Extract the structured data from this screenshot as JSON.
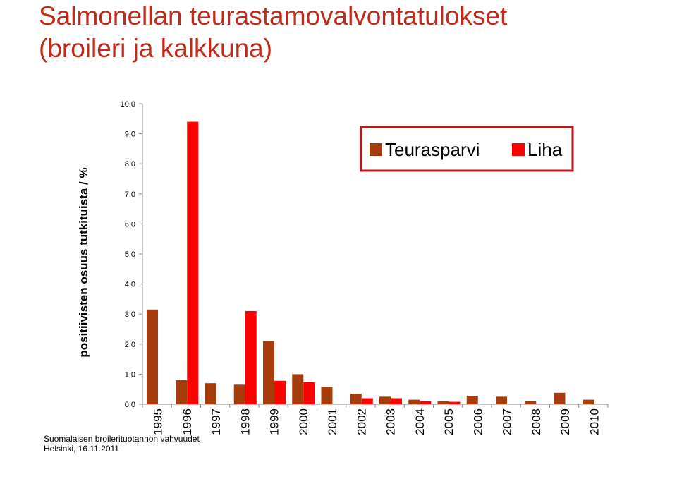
{
  "title": [
    "Salmonellan teurastamovalvontatulokset",
    "(broileri ja kalkkuna)"
  ],
  "colors": {
    "title": "#c02a1a",
    "teurasparvi": "#a63c0c",
    "liha": "#ff0000",
    "legend_border": "#c0141c"
  },
  "footer": [
    "Suomalaisen broilerituotannon vahvuudet",
    "Helsinki, 16.11.2011"
  ],
  "chart_data": {
    "type": "bar",
    "categories": [
      "1995",
      "1996",
      "1997",
      "1998",
      "1999",
      "2000",
      "2001",
      "2002",
      "2003",
      "2004",
      "2005",
      "2006",
      "2007",
      "2008",
      "2009",
      "2010"
    ],
    "series": [
      {
        "name": "Teurasparvi",
        "values": [
          3.15,
          0.8,
          0.7,
          0.65,
          2.1,
          1.0,
          0.58,
          0.35,
          0.25,
          0.15,
          0.1,
          0.28,
          0.25,
          0.1,
          0.38,
          0.15
        ]
      },
      {
        "name": "Liha",
        "values": [
          null,
          9.4,
          null,
          3.1,
          0.78,
          0.73,
          null,
          0.2,
          0.2,
          0.1,
          0.08,
          null,
          null,
          null,
          null,
          null
        ]
      }
    ],
    "ylabel": "positiivisten osuus tutkituista / %",
    "ylim": [
      0,
      10
    ],
    "yticks": [
      "0,0",
      "1,0",
      "2,0",
      "3,0",
      "4,0",
      "5,0",
      "6,0",
      "7,0",
      "8,0",
      "9,0",
      "10,0"
    ],
    "grid": false,
    "legend_position": "top-right"
  }
}
